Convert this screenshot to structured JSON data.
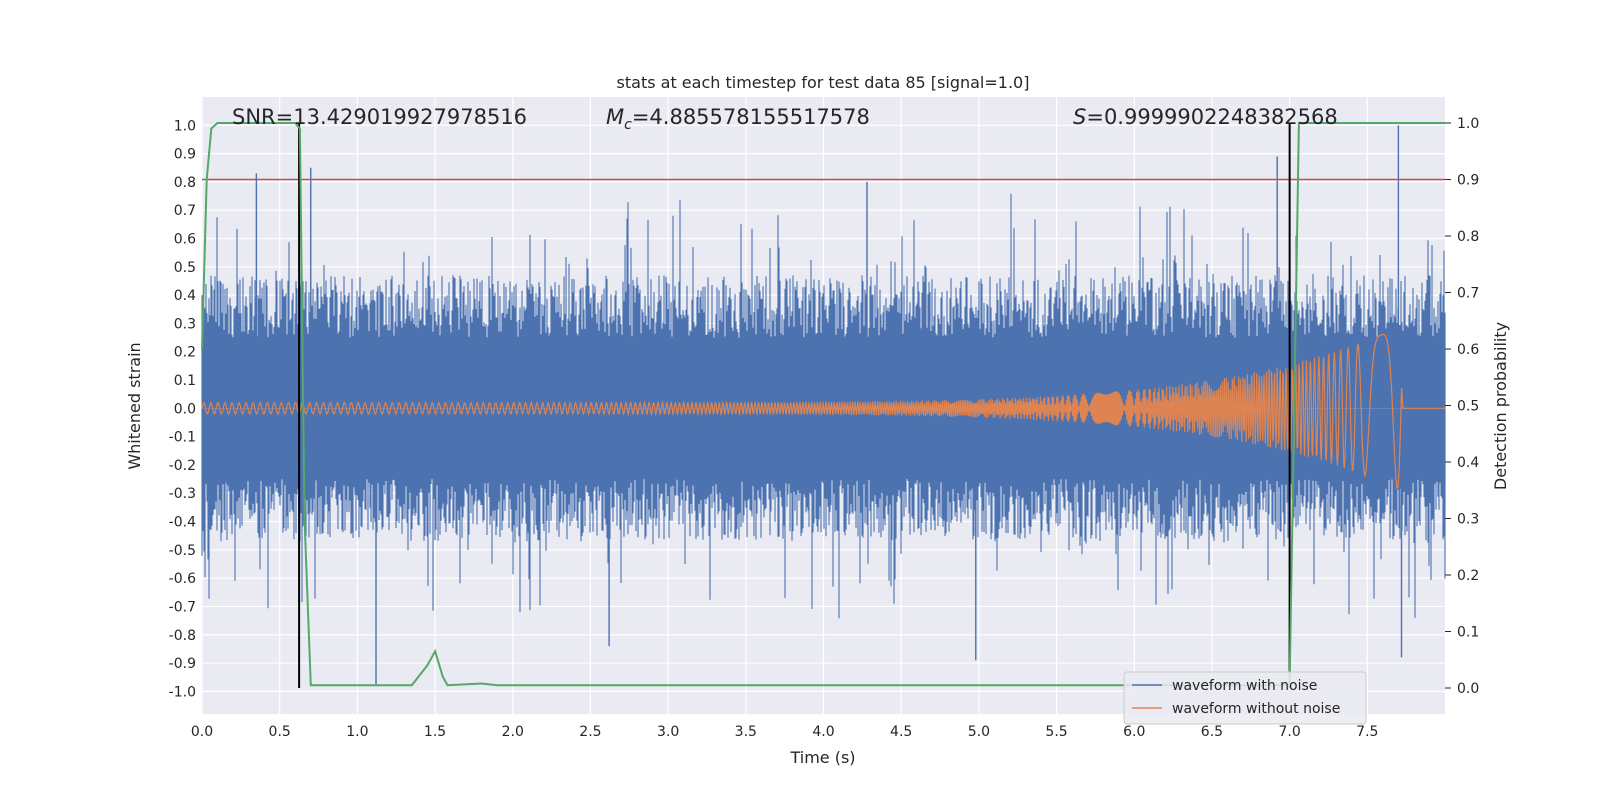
{
  "chart_data": {
    "type": "line",
    "title": "stats at each timestep for test data 85 [signal=1.0]",
    "xlabel": "Time (s)",
    "ylabel": "Whitened strain",
    "ylabel_right": "Detection probability",
    "xlim": [
      0.0,
      8.0
    ],
    "ylim": [
      -1.08,
      1.1
    ],
    "ylim_right": [
      -0.046,
      1.046
    ],
    "x_ticks": [
      "0.0",
      "0.5",
      "1.0",
      "1.5",
      "2.0",
      "2.5",
      "3.0",
      "3.5",
      "4.0",
      "4.5",
      "5.0",
      "5.5",
      "6.0",
      "6.5",
      "7.0",
      "7.5"
    ],
    "y_ticks": [
      "-1.0",
      "-0.9",
      "-0.8",
      "-0.7",
      "-0.6",
      "-0.5",
      "-0.4",
      "-0.3",
      "-0.2",
      "-0.1",
      "0.0",
      "0.1",
      "0.2",
      "0.3",
      "0.4",
      "0.5",
      "0.6",
      "0.7",
      "0.8",
      "0.9",
      "1.0"
    ],
    "y_ticks_right": [
      "0.0",
      "0.1",
      "0.2",
      "0.3",
      "0.4",
      "0.5",
      "0.6",
      "0.7",
      "0.8",
      "0.9",
      "1.0"
    ],
    "annotations": {
      "snr": "SNR=13.429019927978516",
      "mc_symbol": "M",
      "mc_sub": "c",
      "mc_value": "=4.885578155517578",
      "s_symbol": "S",
      "s_value": "=0.9999902248382568"
    },
    "threshold": {
      "axis": "right",
      "value": 0.9
    },
    "vertical_lines": [
      0.625,
      7.0
    ],
    "noisy_waveform": {
      "name": "waveform with noise",
      "style": "dense noise, amplitude ~±0.45 with spikes to ~±0.9",
      "peaks_high": [
        [
          0.35,
          0.83
        ],
        [
          0.7,
          0.85
        ],
        [
          4.28,
          0.8
        ],
        [
          6.92,
          0.89
        ],
        [
          7.7,
          1.0
        ]
      ],
      "peaks_low": [
        [
          1.12,
          -0.98
        ],
        [
          2.62,
          -0.84
        ],
        [
          4.98,
          -0.89
        ],
        [
          7.72,
          -0.88
        ]
      ]
    },
    "clean_waveform": {
      "name": "waveform without noise",
      "style": "chirp: amplitude grows from ~0.02 to ~0.3 at 7.72 s, then stops",
      "merger_time": 7.72,
      "peak_amplitude": 0.29
    },
    "detection_probability": {
      "name": "detection probability",
      "x": [
        0.0,
        0.03,
        0.06,
        0.1,
        0.6,
        0.63,
        0.66,
        0.7,
        1.35,
        1.45,
        1.5,
        1.55,
        1.58,
        1.8,
        1.9,
        7.0,
        7.03,
        7.06,
        8.0
      ],
      "y": [
        0.6,
        0.9,
        0.99,
        1.0,
        1.0,
        0.99,
        0.3,
        0.005,
        0.005,
        0.04,
        0.065,
        0.02,
        0.005,
        0.008,
        0.005,
        0.005,
        0.5,
        1.0,
        1.0
      ]
    },
    "legend": [
      "waveform with noise",
      "waveform without noise"
    ],
    "legend_position": "bottom-right",
    "colors": {
      "background": "#ffffff",
      "plot_bg": "#eaeaf2",
      "grid": "#ffffff",
      "noisy": "#4c72b0",
      "clean": "#dd8452",
      "probability": "#55a868",
      "threshold": "#c44e52",
      "vline": "#000000"
    }
  }
}
